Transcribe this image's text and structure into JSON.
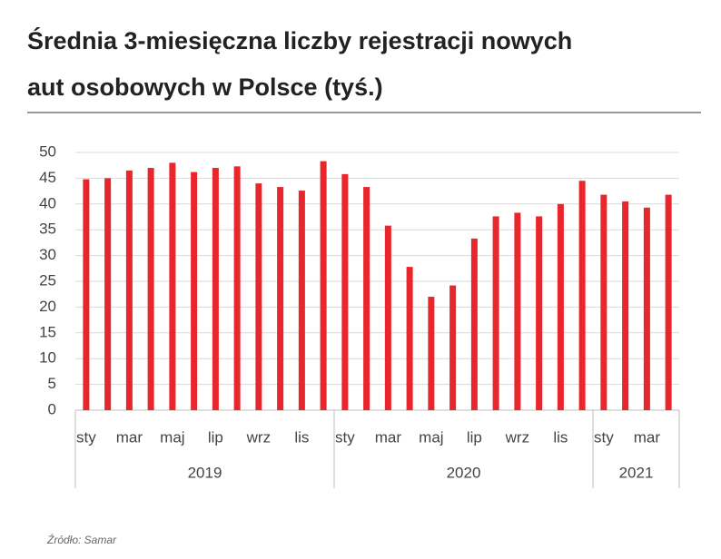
{
  "chart_data": {
    "type": "bar",
    "title_lines": [
      "Średnia 3-miesięczna liczby rejestracji nowych",
      "aut osobowych w Polsce (tyś.)"
    ],
    "source": "Źródło: Samar",
    "category_groups": [
      {
        "label": "2019",
        "categories": [
          "sty",
          null,
          "mar",
          null,
          "maj",
          null,
          "lip",
          null,
          "wrz",
          null,
          "lis",
          null
        ]
      },
      {
        "label": "2020",
        "categories": [
          "sty",
          null,
          "mar",
          null,
          "maj",
          null,
          "lip",
          null,
          "wrz",
          null,
          "lis",
          null
        ]
      },
      {
        "label": "2021",
        "categories": [
          "sty",
          null,
          "mar",
          null
        ]
      }
    ],
    "values": [
      44.8,
      45,
      46.5,
      47,
      48,
      46.2,
      47,
      47.3,
      44,
      43.3,
      42.6,
      48.3,
      45.8,
      43.3,
      35.8,
      27.8,
      22,
      24.2,
      33.3,
      37.6,
      38.3,
      37.6,
      40,
      44.5,
      41.8,
      40.5,
      39.3,
      41.8
    ],
    "color": "#e8262b",
    "ylim": [
      0,
      50
    ],
    "yticks": [
      0,
      5,
      10,
      15,
      20,
      25,
      30,
      35,
      40,
      45,
      50
    ],
    "grid": true
  }
}
